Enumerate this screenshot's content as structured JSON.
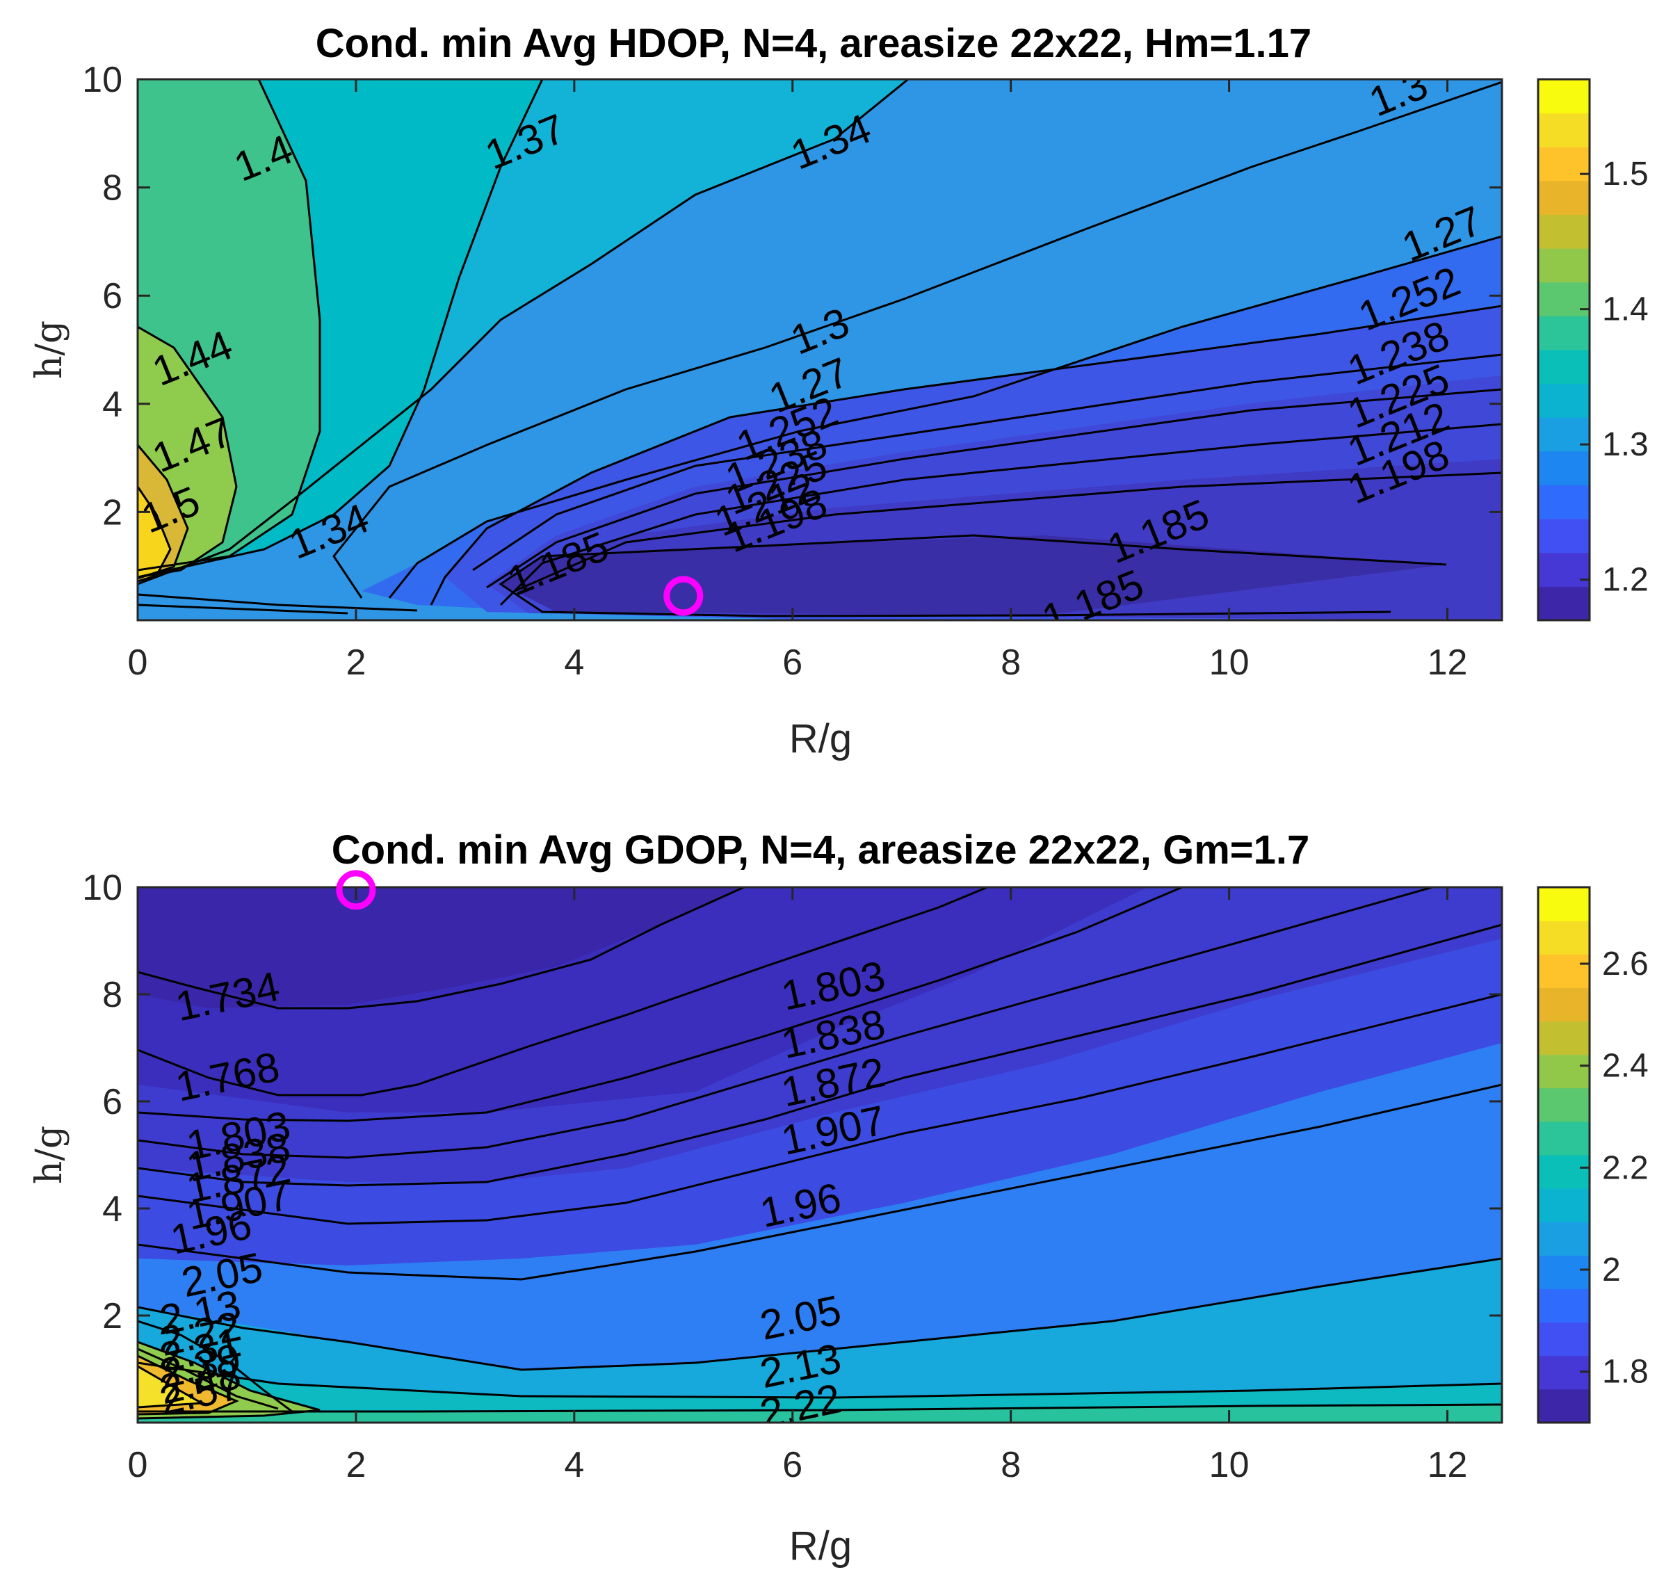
{
  "chart_data": [
    {
      "type": "contour",
      "title": "Cond. min Avg HDOP, N=4, areasize 22x22, Hm=1.17",
      "xlabel": "R/g",
      "ylabel": "h/g",
      "xlim": [
        0,
        12.5
      ],
      "ylim": [
        0,
        10
      ],
      "xticks": [
        "0",
        "2",
        "4",
        "6",
        "8",
        "10",
        "12"
      ],
      "yticks": [
        "2",
        "4",
        "6",
        "8",
        "10"
      ],
      "colorbar": {
        "range": [
          1.17,
          1.57
        ],
        "ticks": [
          "1.2",
          "1.3",
          "1.4",
          "1.5"
        ]
      },
      "marker": {
        "shape": "circle",
        "color": "#ff00ff",
        "x": 5.0,
        "y": 0.45
      },
      "contour_labels": [
        {
          "text": "1.4",
          "x": 1.2,
          "y": 8.3
        },
        {
          "text": "1.37",
          "x": 3.6,
          "y": 8.6
        },
        {
          "text": "1.34",
          "x": 6.4,
          "y": 8.6
        },
        {
          "text": "1.3",
          "x": 11.6,
          "y": 9.5
        },
        {
          "text": "1.27",
          "x": 12.0,
          "y": 6.9
        },
        {
          "text": "1.252",
          "x": 11.7,
          "y": 5.7
        },
        {
          "text": "1.238",
          "x": 11.6,
          "y": 4.7
        },
        {
          "text": "1.225",
          "x": 11.6,
          "y": 3.9
        },
        {
          "text": "1.212",
          "x": 11.6,
          "y": 3.2
        },
        {
          "text": "1.198",
          "x": 11.6,
          "y": 2.5
        },
        {
          "text": "1.185",
          "x": 9.4,
          "y": 1.4
        },
        {
          "text": "1.185",
          "x": 8.8,
          "y": 0.1
        },
        {
          "text": "1.185",
          "x": 3.9,
          "y": 0.8
        },
        {
          "text": "1.3",
          "x": 6.3,
          "y": 5.1
        },
        {
          "text": "1.27",
          "x": 6.2,
          "y": 4.1
        },
        {
          "text": "1.252",
          "x": 6.0,
          "y": 3.3
        },
        {
          "text": "1.238",
          "x": 5.9,
          "y": 2.7
        },
        {
          "text": "1.225",
          "x": 5.9,
          "y": 2.3
        },
        {
          "text": "1.212",
          "x": 5.8,
          "y": 1.9
        },
        {
          "text": "1.198",
          "x": 5.9,
          "y": 1.6
        },
        {
          "text": "1.34",
          "x": 1.8,
          "y": 1.4
        },
        {
          "text": "1.44",
          "x": 0.55,
          "y": 4.6
        },
        {
          "text": "1.47",
          "x": 0.55,
          "y": 3.0
        },
        {
          "text": "1.5",
          "x": 0.35,
          "y": 1.8
        }
      ]
    },
    {
      "type": "contour",
      "title": "Cond. min Avg GDOP, N=4, areasize 22x22, Gm=1.7",
      "xlabel": "R/g",
      "ylabel": "h/g",
      "xlim": [
        0,
        12.5
      ],
      "ylim": [
        0,
        10
      ],
      "xticks": [
        "0",
        "2",
        "4",
        "6",
        "8",
        "10",
        "12"
      ],
      "yticks": [
        "2",
        "4",
        "6",
        "8",
        "10"
      ],
      "colorbar": {
        "range": [
          1.7,
          2.75
        ],
        "ticks": [
          "1.8",
          "2",
          "2.2",
          "2.4",
          "2.6"
        ]
      },
      "marker": {
        "shape": "circle",
        "color": "#ff00ff",
        "x": 2.0,
        "y": 9.95
      },
      "contour_labels": [
        {
          "text": "1.734",
          "x": 0.85,
          "y": 7.7
        },
        {
          "text": "1.768",
          "x": 0.85,
          "y": 6.2
        },
        {
          "text": "1.803",
          "x": 0.95,
          "y": 5.1
        },
        {
          "text": "1.838",
          "x": 0.95,
          "y": 4.7
        },
        {
          "text": "1.872",
          "x": 0.95,
          "y": 4.3
        },
        {
          "text": "1.907",
          "x": 0.95,
          "y": 3.8
        },
        {
          "text": "1.96",
          "x": 0.7,
          "y": 3.3
        },
        {
          "text": "2.05",
          "x": 0.8,
          "y": 2.5
        },
        {
          "text": "2.13",
          "x": 0.6,
          "y": 1.8
        },
        {
          "text": "2.22",
          "x": 0.6,
          "y": 1.4
        },
        {
          "text": "2.31",
          "x": 0.6,
          "y": 1.1
        },
        {
          "text": "2.39",
          "x": 0.6,
          "y": 0.8
        },
        {
          "text": "2.48",
          "x": 0.6,
          "y": 0.5
        },
        {
          "text": "2.57",
          "x": 0.6,
          "y": 0.3
        },
        {
          "text": "1.803",
          "x": 6.4,
          "y": 7.9
        },
        {
          "text": "1.838",
          "x": 6.4,
          "y": 7.0
        },
        {
          "text": "1.872",
          "x": 6.4,
          "y": 6.1
        },
        {
          "text": "1.907",
          "x": 6.4,
          "y": 5.2
        },
        {
          "text": "1.96",
          "x": 6.1,
          "y": 3.8
        },
        {
          "text": "2.05",
          "x": 6.1,
          "y": 1.7
        },
        {
          "text": "2.13",
          "x": 6.1,
          "y": 0.8
        },
        {
          "text": "2.22",
          "x": 6.1,
          "y": 0.05
        }
      ]
    }
  ],
  "colors": {
    "marker": "#ff00ff",
    "line": "#000000",
    "low": "#3e26a8",
    "high": "#f9fb0e"
  }
}
